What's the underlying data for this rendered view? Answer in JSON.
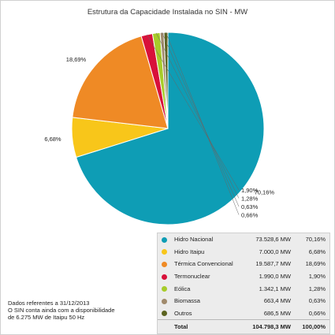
{
  "chart_data": {
    "type": "pie",
    "title": "Estrutura da Capacidade Instalada no SIN - MW",
    "slices": [
      {
        "name": "Hidro Nacional",
        "mw": "73.528,6 MW",
        "pct_label": "70,16%",
        "value": 70.16,
        "color": "#0e9db5"
      },
      {
        "name": "Hidro Itaipu",
        "mw": "7.000,0 MW",
        "pct_label": "6,68%",
        "value": 6.68,
        "color": "#f8c61a"
      },
      {
        "name": "Térmica Convencional",
        "mw": "19.587,7 MW",
        "pct_label": "18,69%",
        "value": 18.69,
        "color": "#ef8a25"
      },
      {
        "name": "Termonuclear",
        "mw": "1.990,0 MW",
        "pct_label": "1,90%",
        "value": 1.9,
        "color": "#d8113a"
      },
      {
        "name": "Eólica",
        "mw": "1.342,1 MW",
        "pct_label": "1,28%",
        "value": 1.28,
        "color": "#a7cc2a"
      },
      {
        "name": "Biomassa",
        "mw": "663,4 MW",
        "pct_label": "0,63%",
        "value": 0.63,
        "color": "#a08a6c"
      },
      {
        "name": "Outros",
        "mw": "686,5 MW",
        "pct_label": "0,66%",
        "value": 0.66,
        "color": "#5b6320"
      }
    ],
    "total": {
      "label": "Total",
      "mw": "104.798,3 MW",
      "pct": "100,00%"
    }
  },
  "note": {
    "line1": "Dados referentes a 31/12/2013",
    "line2": "O SIN conta ainda com a disponibilidade",
    "line3": "de 6.275 MW de Itaipu 50 Hz"
  }
}
